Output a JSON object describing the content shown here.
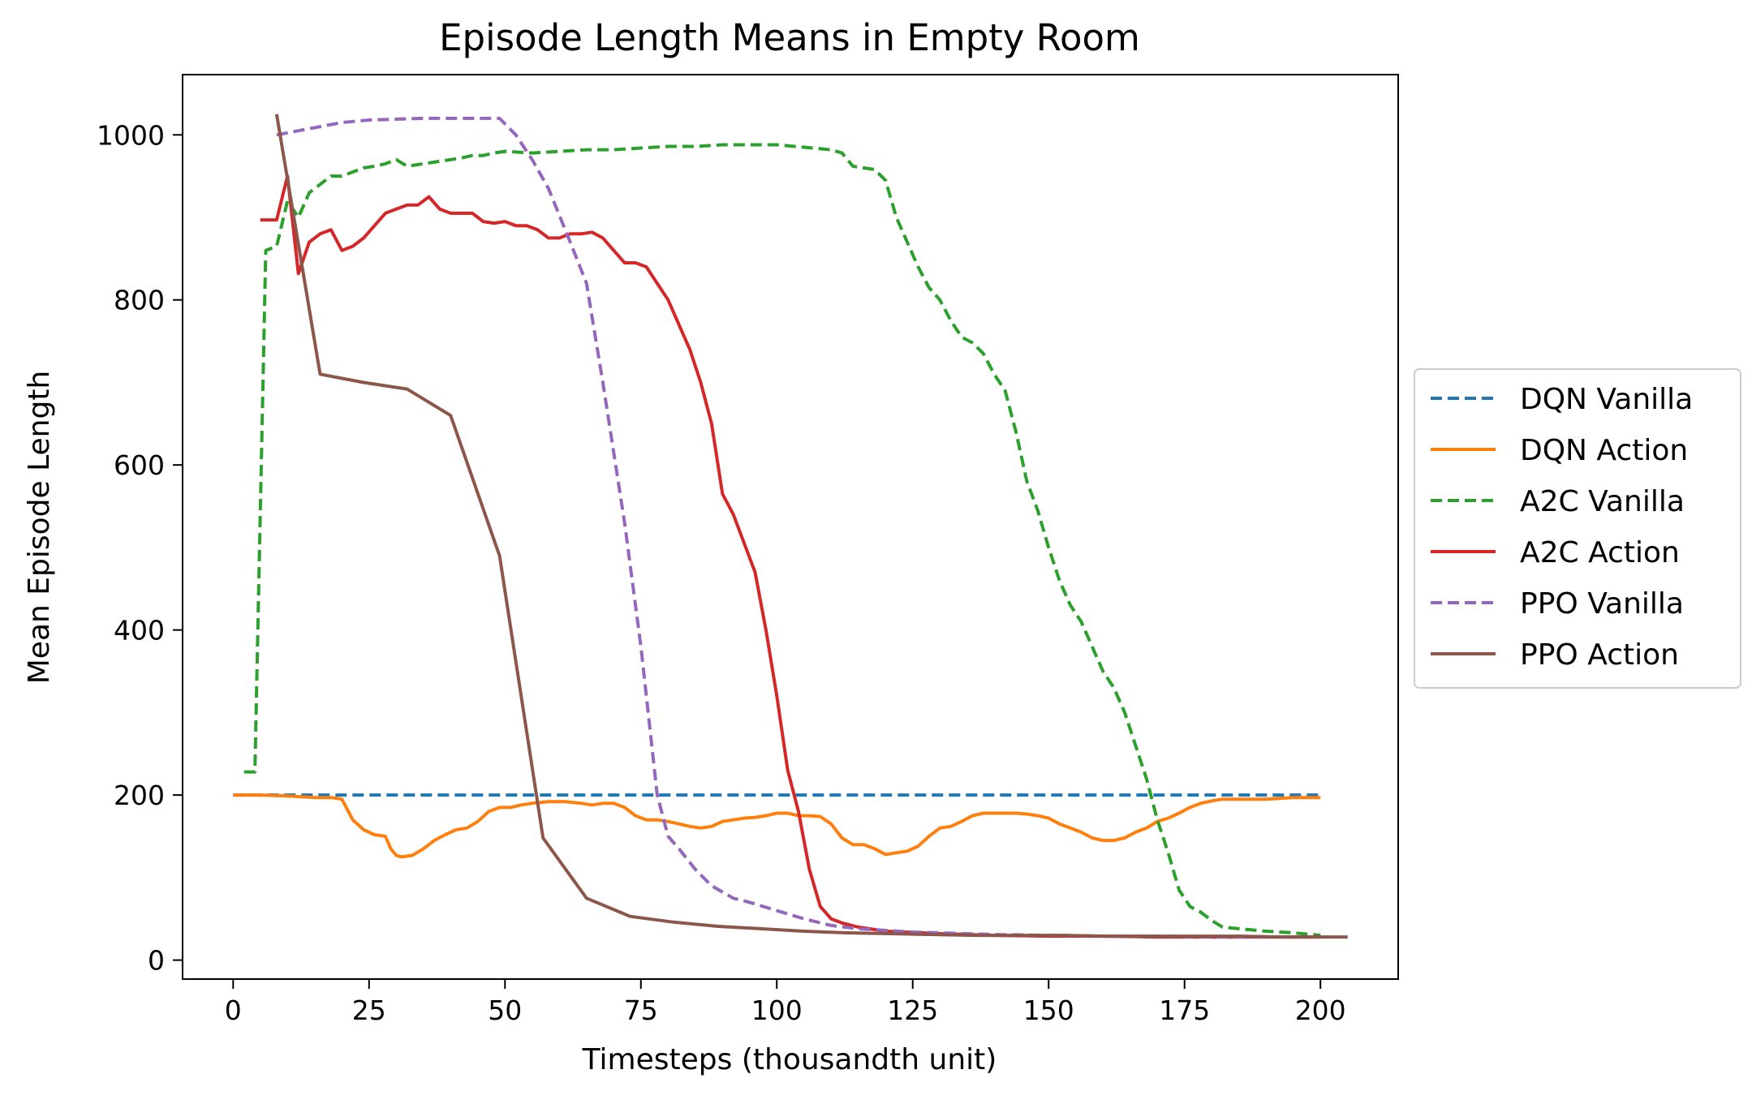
{
  "chart_data": {
    "type": "line",
    "title": "Episode Length Means in Empty Room",
    "xlabel": "Timesteps (thousandth unit)",
    "ylabel": "Mean Episode Length",
    "xlim": [
      -9.3,
      214.3
    ],
    "ylim": [
      -23,
      1073
    ],
    "xticks": [
      0,
      25,
      50,
      75,
      100,
      125,
      150,
      175,
      200
    ],
    "yticks": [
      0,
      200,
      400,
      600,
      800,
      1000
    ],
    "grid": false,
    "legend_position": "right-outside",
    "series": [
      {
        "name": "DQN Vanilla",
        "color": "#1f77b4",
        "dash": "dashed",
        "x": [
          0,
          50,
          100,
          150,
          200
        ],
        "y": [
          200,
          200,
          200,
          200,
          200
        ]
      },
      {
        "name": "DQN Action",
        "color": "#ff7f0e",
        "dash": "solid",
        "x": [
          0,
          5,
          10,
          15,
          18,
          20,
          22,
          24,
          26,
          28,
          29,
          30,
          31,
          33,
          35,
          37,
          39,
          41,
          43,
          45,
          47,
          49,
          51,
          53,
          55,
          58,
          61,
          64,
          66,
          68,
          70,
          72,
          74,
          76,
          78,
          80,
          82,
          84,
          86,
          88,
          90,
          92,
          94,
          96,
          98,
          100,
          102,
          104,
          106,
          108,
          110,
          112,
          114,
          116,
          118,
          120,
          122,
          124,
          126,
          128,
          130,
          132,
          134,
          136,
          138,
          140,
          142,
          144,
          146,
          148,
          150,
          152,
          154,
          156,
          158,
          160,
          162,
          164,
          166,
          168,
          170,
          172,
          174,
          176,
          178,
          180,
          182,
          185,
          190,
          195,
          200
        ],
        "y": [
          200,
          200,
          199,
          197,
          197,
          195,
          170,
          158,
          152,
          150,
          135,
          127,
          125,
          127,
          135,
          145,
          152,
          158,
          160,
          168,
          180,
          185,
          185,
          188,
          190,
          192,
          192,
          190,
          188,
          190,
          190,
          185,
          175,
          170,
          170,
          168,
          165,
          162,
          160,
          162,
          168,
          170,
          172,
          173,
          175,
          178,
          178,
          175,
          175,
          174,
          165,
          148,
          140,
          140,
          135,
          128,
          130,
          132,
          138,
          150,
          160,
          162,
          168,
          175,
          178,
          178,
          178,
          178,
          177,
          175,
          172,
          165,
          160,
          155,
          148,
          145,
          145,
          148,
          155,
          160,
          168,
          172,
          178,
          185,
          190,
          193,
          195,
          195,
          195,
          197,
          197
        ]
      },
      {
        "name": "A2C Vanilla",
        "color": "#2ca02c",
        "dash": "dashed",
        "x": [
          2,
          4,
          6,
          8,
          10,
          12,
          14,
          16,
          18,
          20,
          22,
          24,
          26,
          28,
          30,
          32,
          34,
          36,
          38,
          40,
          42,
          44,
          46,
          48,
          50,
          55,
          60,
          65,
          70,
          75,
          80,
          85,
          90,
          95,
          100,
          105,
          110,
          112,
          114,
          116,
          118,
          120,
          122,
          124,
          126,
          128,
          130,
          132,
          134,
          136,
          138,
          140,
          142,
          144,
          146,
          148,
          150,
          152,
          154,
          156,
          158,
          160,
          162,
          164,
          166,
          168,
          170,
          172,
          174,
          176,
          178,
          180,
          182,
          185,
          190,
          195,
          200
        ],
        "y": [
          228,
          228,
          860,
          865,
          920,
          900,
          930,
          940,
          950,
          950,
          955,
          960,
          962,
          965,
          970,
          962,
          964,
          966,
          968,
          970,
          972,
          975,
          975,
          978,
          980,
          978,
          980,
          982,
          982,
          984,
          986,
          986,
          988,
          988,
          988,
          985,
          982,
          978,
          962,
          960,
          958,
          945,
          900,
          870,
          840,
          815,
          800,
          775,
          755,
          748,
          735,
          710,
          690,
          640,
          580,
          545,
          500,
          460,
          430,
          410,
          380,
          350,
          330,
          300,
          260,
          220,
          170,
          130,
          85,
          65,
          58,
          48,
          40,
          38,
          35,
          33,
          30
        ]
      },
      {
        "name": "A2C Action",
        "color": "#d62728",
        "dash": "solid",
        "x": [
          5,
          8,
          10,
          12,
          14,
          16,
          18,
          20,
          22,
          24,
          26,
          28,
          30,
          32,
          34,
          36,
          38,
          40,
          42,
          44,
          46,
          48,
          50,
          52,
          54,
          56,
          58,
          60,
          62,
          64,
          66,
          68,
          70,
          72,
          74,
          76,
          78,
          80,
          82,
          84,
          86,
          88,
          90,
          92,
          94,
          96,
          98,
          100,
          102,
          104,
          106,
          108,
          110,
          112,
          115,
          120,
          130,
          140,
          150,
          160,
          170,
          180,
          190,
          200
        ],
        "y": [
          897,
          897,
          950,
          832,
          870,
          880,
          885,
          860,
          865,
          875,
          890,
          905,
          910,
          915,
          915,
          925,
          910,
          905,
          905,
          905,
          895,
          893,
          895,
          890,
          890,
          885,
          875,
          875,
          880,
          880,
          882,
          875,
          860,
          845,
          845,
          840,
          820,
          800,
          770,
          740,
          700,
          650,
          565,
          540,
          505,
          470,
          400,
          320,
          230,
          180,
          110,
          65,
          50,
          45,
          40,
          35,
          32,
          30,
          29,
          29,
          28,
          28,
          28,
          28
        ]
      },
      {
        "name": "PPO Vanilla",
        "color": "#9467bd",
        "dash": "dashed",
        "x": [
          8,
          12,
          16,
          20,
          25,
          30,
          35,
          40,
          45,
          49,
          52,
          55,
          58,
          62,
          65,
          68,
          72,
          75,
          78,
          80,
          82,
          85,
          88,
          92,
          95,
          100,
          105,
          110,
          115,
          120,
          125,
          130,
          140,
          150,
          160,
          170,
          180,
          190,
          200
        ],
        "y": [
          1000,
          1005,
          1010,
          1015,
          1018,
          1019,
          1020,
          1020,
          1020,
          1020,
          1000,
          970,
          935,
          870,
          820,
          700,
          530,
          380,
          200,
          150,
          135,
          110,
          90,
          75,
          70,
          60,
          50,
          42,
          38,
          36,
          34,
          33,
          31,
          30,
          29,
          29,
          28,
          28,
          28
        ]
      },
      {
        "name": "PPO Action",
        "color": "#8c564b",
        "dash": "solid",
        "x": [
          8,
          16,
          24,
          32,
          40,
          49,
          57,
          65,
          73,
          81,
          89,
          97,
          105,
          113,
          121,
          129,
          137,
          145,
          153,
          161,
          169,
          177,
          185,
          193,
          201,
          205
        ],
        "y": [
          1025,
          710,
          700,
          692,
          660,
          490,
          148,
          75,
          53,
          46,
          41,
          38,
          35,
          33,
          32,
          31,
          30,
          30,
          30,
          29,
          29,
          29,
          29,
          28,
          28,
          28
        ]
      }
    ]
  }
}
